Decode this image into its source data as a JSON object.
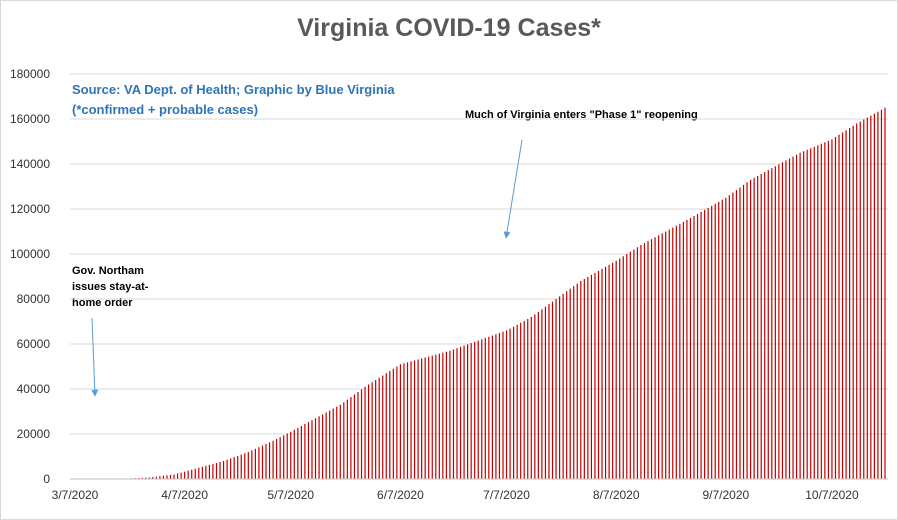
{
  "chart_data": {
    "type": "bar",
    "title": "Virginia COVID-19 Cases*",
    "subtitle": [
      "Source: VA Dept. of Health; Graphic by Blue Virginia",
      "(*confirmed + probable cases)"
    ],
    "xlabel": "",
    "ylabel": "",
    "ylim": [
      0,
      180000
    ],
    "yticks": [
      0,
      20000,
      40000,
      60000,
      80000,
      100000,
      120000,
      140000,
      160000,
      180000
    ],
    "x_start": "3/7/2020",
    "x_end": "10/22/2020",
    "xticks": [
      "3/7/2020",
      "4/7/2020",
      "5/7/2020",
      "6/7/2020",
      "7/7/2020",
      "8/7/2020",
      "9/7/2020",
      "10/7/2020"
    ],
    "grid": true,
    "bar_color": "#c00000",
    "series": [
      {
        "values_by_date": [
          [
            "3/7/2020",
            0
          ],
          [
            "3/14/2020",
            40
          ],
          [
            "3/21/2020",
            150
          ],
          [
            "3/28/2020",
            700
          ],
          [
            "4/4/2020",
            2000
          ],
          [
            "4/7/2020",
            3300
          ],
          [
            "4/11/2020",
            5000
          ],
          [
            "4/18/2020",
            8000
          ],
          [
            "4/25/2020",
            12000
          ],
          [
            "5/2/2020",
            17000
          ],
          [
            "5/7/2020",
            21000
          ],
          [
            "5/14/2020",
            27000
          ],
          [
            "5/21/2020",
            33000
          ],
          [
            "5/28/2020",
            41000
          ],
          [
            "6/4/2020",
            48000
          ],
          [
            "6/7/2020",
            51000
          ],
          [
            "6/14/2020",
            54000
          ],
          [
            "6/21/2020",
            57000
          ],
          [
            "6/28/2020",
            61000
          ],
          [
            "7/7/2020",
            66000
          ],
          [
            "7/14/2020",
            72000
          ],
          [
            "7/21/2020",
            80000
          ],
          [
            "7/28/2020",
            88000
          ],
          [
            "8/7/2020",
            97000
          ],
          [
            "8/14/2020",
            104000
          ],
          [
            "8/21/2020",
            110000
          ],
          [
            "8/28/2020",
            116000
          ],
          [
            "9/7/2020",
            125000
          ],
          [
            "9/14/2020",
            133000
          ],
          [
            "9/21/2020",
            139000
          ],
          [
            "9/28/2020",
            145000
          ],
          [
            "10/7/2020",
            151000
          ],
          [
            "10/14/2020",
            158000
          ],
          [
            "10/22/2020",
            165000
          ]
        ]
      }
    ],
    "annotations": [
      {
        "id": "phase1",
        "text": "Much of Virginia enters \"Phase 1\" reopening"
      },
      {
        "id": "stayhome",
        "text": "Gov. Northam issues stay-at-home order"
      }
    ]
  }
}
